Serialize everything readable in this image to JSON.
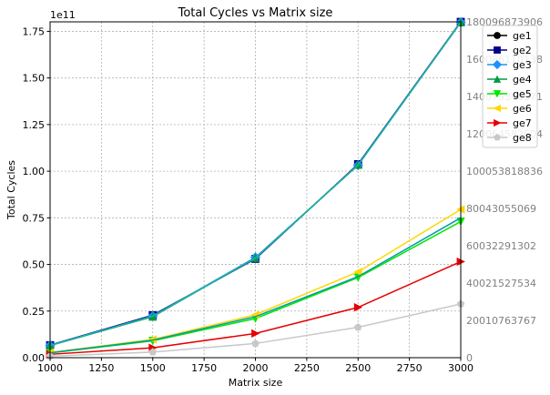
{
  "chart_data": {
    "type": "line",
    "title": "Total Cycles vs Matrix size",
    "xlabel": "Matrix size",
    "ylabel": "Total Cycles",
    "y_offset_label": "1e11",
    "xlim": [
      1000,
      3000
    ],
    "ylim": [
      0,
      180096873906
    ],
    "x_ticks": [
      1000,
      1250,
      1500,
      1750,
      2000,
      2250,
      2500,
      2750,
      3000
    ],
    "y_ticks": [
      0,
      0.25,
      0.5,
      0.75,
      1.0,
      1.25,
      1.5,
      1.75
    ],
    "y_tick_labels": [
      "0.00",
      "0.25",
      "0.50",
      "0.75",
      "1.00",
      "1.25",
      "1.50",
      "1.75"
    ],
    "right_ticks": [
      "0",
      "20010763767",
      "40021527534",
      "60032291302",
      "80043055069",
      "100053818836",
      "120064582604",
      "140075346371",
      "160086110138",
      "180096873906"
    ],
    "grid": true,
    "legend_position": "top-right",
    "x": [
      1000,
      1500,
      2000,
      2500,
      3000
    ],
    "series": [
      {
        "name": "ge1",
        "color": "#000000",
        "marker": "circle",
        "values": [
          6700000000,
          22500000000,
          53200000000,
          103500000000,
          180000000000
        ]
      },
      {
        "name": "ge2",
        "color": "#00008b",
        "marker": "square",
        "values": [
          6700000000,
          22800000000,
          53000000000,
          103800000000,
          180100000000
        ]
      },
      {
        "name": "ge3",
        "color": "#1e90ff",
        "marker": "diamond",
        "values": [
          6600000000,
          22300000000,
          53800000000,
          103200000000,
          179900000000
        ]
      },
      {
        "name": "ge4",
        "color": "#009a44",
        "marker": "triangle-up",
        "values": [
          6500000000,
          22000000000,
          53500000000,
          103400000000,
          179800000000
        ]
      },
      {
        "name": "ge5",
        "color": "#00e600",
        "marker": "triangle-down",
        "values": [
          2500000000,
          9000000000,
          21000000000,
          43000000000,
          73000000000
        ]
      },
      {
        "name": "ge6",
        "color": "#ffd700",
        "marker": "triangle-left",
        "values": [
          2800000000,
          9800000000,
          23000000000,
          46000000000,
          79500000000
        ]
      },
      {
        "name": "ge7",
        "color": "#e60000",
        "marker": "triangle-right",
        "values": [
          1800000000,
          5300000000,
          13000000000,
          27000000000,
          51500000000
        ]
      },
      {
        "name": "ge8",
        "color": "#c8c8c8",
        "marker": "pentagon",
        "values": [
          800000000,
          3000000000,
          7600000000,
          16300000000,
          28800000000
        ]
      },
      {
        "name": "",
        "color": "#20b2aa",
        "marker": "none",
        "values": [
          6600000000,
          22300000000,
          53400000000,
          103400000000,
          179900000000
        ]
      },
      {
        "name": "",
        "color": "#0099aa",
        "marker": "none",
        "values": [
          2600000000,
          9400000000,
          22000000000,
          43500000000,
          75000000000
        ]
      }
    ]
  }
}
